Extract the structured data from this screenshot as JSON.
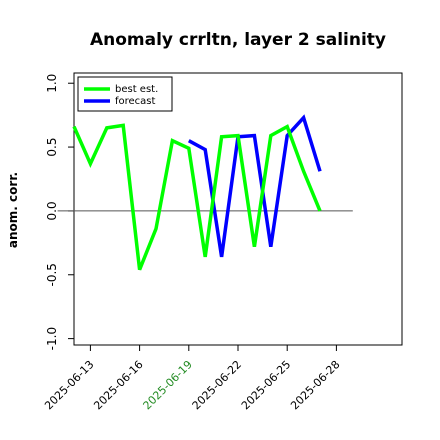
{
  "chart_data": {
    "type": "line",
    "title": "Anomaly crrltn, layer 2 salinity",
    "xlabel": "",
    "ylabel": "anom. corr.",
    "ylim": [
      -1.05,
      1.08
    ],
    "xlim": [
      -3,
      57
    ],
    "yticks": [
      -1.0,
      -0.5,
      0.0,
      0.5,
      1.0
    ],
    "ytick_labels": [
      "-1.0",
      "-0.5",
      "0.0",
      "0.5",
      "1.0"
    ],
    "xticks": [
      {
        "pos": 0,
        "label": "2025-06-13",
        "color": "#000000"
      },
      {
        "pos": 9,
        "label": "2025-06-16",
        "color": "#000000"
      },
      {
        "pos": 18,
        "label": "2025-06-19",
        "color": "#228B22"
      },
      {
        "pos": 27,
        "label": "2025-06-22",
        "color": "#000000"
      },
      {
        "pos": 36,
        "label": "2025-06-25",
        "color": "#000000"
      },
      {
        "pos": 45,
        "label": "2025-06-28",
        "color": "#000000"
      }
    ],
    "zero_line": {
      "y": 0,
      "x_range": [
        -6,
        48
      ]
    },
    "legend": {
      "placement": "top-left",
      "entries": [
        "best est.",
        "forecast"
      ]
    },
    "series": [
      {
        "name": "forecast",
        "color": "#0000ff",
        "x": [
          18,
          21,
          24,
          27,
          30,
          33,
          36,
          39,
          42
        ],
        "y": [
          0.55,
          0.48,
          -0.36,
          0.58,
          0.59,
          -0.28,
          0.59,
          0.73,
          0.31
        ]
      },
      {
        "name": "best est.",
        "color": "#00ff00",
        "x": [
          -3,
          0,
          3,
          6,
          9,
          12,
          15,
          18,
          21,
          24,
          27,
          30,
          33,
          36,
          39,
          42,
          45
        ],
        "y": [
          0.66,
          0.37,
          0.65,
          0.67,
          -0.46,
          -0.14,
          0.55,
          0.49,
          -0.36,
          0.58,
          0.59,
          -0.28,
          0.59,
          0.66,
          0.31,
          0.0,
          null
        ]
      }
    ]
  }
}
